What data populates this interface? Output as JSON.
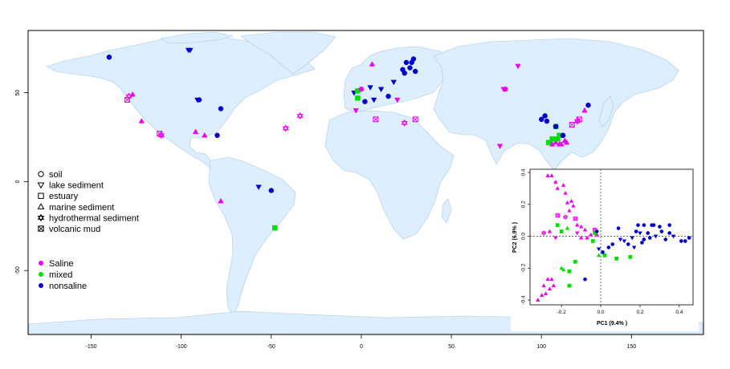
{
  "axes": {
    "x_ticks": [
      {
        "value": -150,
        "label": "-150"
      },
      {
        "value": -100,
        "label": "-100"
      },
      {
        "value": -50,
        "label": "-50"
      },
      {
        "value": 0,
        "label": "0"
      },
      {
        "value": 50,
        "label": "50"
      },
      {
        "value": 100,
        "label": "100"
      },
      {
        "value": 150,
        "label": "150"
      }
    ],
    "y_ticks": [
      {
        "value": 50,
        "label": "50"
      },
      {
        "value": 0,
        "label": "0"
      },
      {
        "value": -50,
        "label": "-50"
      }
    ],
    "xlim": [
      -185,
      190
    ],
    "ylim": [
      -86,
      85
    ]
  },
  "legend_habitat": [
    {
      "symbol": "circle",
      "label": "soil"
    },
    {
      "symbol": "triangle-down",
      "label": "lake sediment"
    },
    {
      "symbol": "square",
      "label": "estuary"
    },
    {
      "symbol": "triangle-up",
      "label": "marine sediment"
    },
    {
      "symbol": "star",
      "label": "hydrothermal sediment"
    },
    {
      "symbol": "square-x",
      "label": "volcanic mud"
    }
  ],
  "legend_salinity": [
    {
      "color": "#ee00ee",
      "label": "Saline"
    },
    {
      "color": "#00dd00",
      "label": "mixed"
    },
    {
      "color": "#0000cc",
      "label": "nonsaline"
    }
  ],
  "colors": {
    "Saline": "#ee00ee",
    "mixed": "#00dd00",
    "nonsaline": "#0000cc",
    "land": "#ddeeff",
    "land_border": "#a8c8ea"
  },
  "inset": {
    "xlabel": "PC1 (9.4% )",
    "ylabel": "PC2 (6.9% )",
    "x_ticks": [
      {
        "value": -0.2,
        "label": "-0.2"
      },
      {
        "value": 0.0,
        "label": "0.0"
      },
      {
        "value": 0.2,
        "label": "0.2"
      },
      {
        "value": 0.4,
        "label": "0.4"
      }
    ],
    "y_ticks": [
      {
        "value": 0.4,
        "label": "0.4"
      },
      {
        "value": 0.2,
        "label": "0.2"
      },
      {
        "value": 0.0,
        "label": "0.0"
      },
      {
        "value": -0.2,
        "label": "-0.2"
      },
      {
        "value": -0.4,
        "label": "-0.4"
      }
    ],
    "xlim": [
      -0.36,
      0.47
    ],
    "ylim": [
      -0.43,
      0.42
    ]
  },
  "chart_data": {
    "type": "scatter",
    "map_points": [
      {
        "lon": -140,
        "lat": 70,
        "shape": "circle",
        "group": "nonsaline"
      },
      {
        "lon": -96,
        "lat": 74,
        "shape": "triangle-down",
        "group": "nonsaline"
      },
      {
        "lon": -95,
        "lat": 74,
        "shape": "triangle-down",
        "group": "nonsaline"
      },
      {
        "lon": -91,
        "lat": 46,
        "shape": "triangle-down",
        "group": "nonsaline"
      },
      {
        "lon": -90,
        "lat": 46,
        "shape": "circle",
        "group": "nonsaline"
      },
      {
        "lon": -78,
        "lat": 41,
        "shape": "circle",
        "group": "nonsaline"
      },
      {
        "lon": -130,
        "lat": 46,
        "shape": "square-x",
        "group": "Saline"
      },
      {
        "lon": -129,
        "lat": 48,
        "shape": "star",
        "group": "Saline"
      },
      {
        "lon": -127,
        "lat": 49,
        "shape": "triangle-up",
        "group": "Saline"
      },
      {
        "lon": -122,
        "lat": 34,
        "shape": "triangle-up",
        "group": "Saline"
      },
      {
        "lon": -112,
        "lat": 27,
        "shape": "square-x",
        "group": "Saline"
      },
      {
        "lon": -111,
        "lat": 26,
        "shape": "star",
        "group": "Saline"
      },
      {
        "lon": -92,
        "lat": 28,
        "shape": "triangle-up",
        "group": "Saline"
      },
      {
        "lon": -87,
        "lat": 26,
        "shape": "triangle-up",
        "group": "Saline"
      },
      {
        "lon": -80,
        "lat": 26,
        "shape": "circle",
        "group": "nonsaline"
      },
      {
        "lon": -78,
        "lat": -11,
        "shape": "triangle-up",
        "group": "Saline"
      },
      {
        "lon": -57,
        "lat": -3,
        "shape": "triangle-down",
        "group": "nonsaline"
      },
      {
        "lon": -50,
        "lat": -5,
        "shape": "circle",
        "group": "nonsaline"
      },
      {
        "lon": -48,
        "lat": -26,
        "shape": "square",
        "group": "mixed"
      },
      {
        "lon": -42,
        "lat": 30,
        "shape": "star",
        "group": "Saline"
      },
      {
        "lon": -34,
        "lat": 37,
        "shape": "star",
        "group": "Saline"
      },
      {
        "lon": -4,
        "lat": 50,
        "shape": "triangle-down",
        "group": "nonsaline"
      },
      {
        "lon": -2,
        "lat": 51,
        "shape": "square",
        "group": "mixed"
      },
      {
        "lon": -2,
        "lat": 47,
        "shape": "square",
        "group": "mixed"
      },
      {
        "lon": -3,
        "lat": 40,
        "shape": "triangle-down",
        "group": "Saline"
      },
      {
        "lon": 0,
        "lat": 52,
        "shape": "circle",
        "group": "Saline"
      },
      {
        "lon": 2,
        "lat": 45,
        "shape": "circle",
        "group": "nonsaline"
      },
      {
        "lon": 5,
        "lat": 53,
        "shape": "triangle-down",
        "group": "nonsaline"
      },
      {
        "lon": 6,
        "lat": 66,
        "shape": "triangle-up",
        "group": "Saline"
      },
      {
        "lon": 7,
        "lat": 46,
        "shape": "triangle-down",
        "group": "nonsaline"
      },
      {
        "lon": 8,
        "lat": 35,
        "shape": "square-x",
        "group": "Saline"
      },
      {
        "lon": 11,
        "lat": 52,
        "shape": "triangle-down",
        "group": "nonsaline"
      },
      {
        "lon": 15,
        "lat": 48,
        "shape": "circle",
        "group": "nonsaline"
      },
      {
        "lon": 20,
        "lat": 46,
        "shape": "triangle-down",
        "group": "Saline"
      },
      {
        "lon": 24,
        "lat": 33,
        "shape": "star",
        "group": "Saline"
      },
      {
        "lon": 30,
        "lat": 35,
        "shape": "square-x",
        "group": "Saline"
      },
      {
        "lon": 23,
        "lat": 63,
        "shape": "circle",
        "group": "nonsaline"
      },
      {
        "lon": 24,
        "lat": 61,
        "shape": "circle",
        "group": "nonsaline"
      },
      {
        "lon": 25,
        "lat": 67,
        "shape": "circle",
        "group": "nonsaline"
      },
      {
        "lon": 27,
        "lat": 64,
        "shape": "circle",
        "group": "nonsaline"
      },
      {
        "lon": 28,
        "lat": 67,
        "shape": "circle",
        "group": "nonsaline"
      },
      {
        "lon": 29,
        "lat": 69,
        "shape": "circle",
        "group": "nonsaline"
      },
      {
        "lon": 30,
        "lat": 62,
        "shape": "circle",
        "group": "nonsaline"
      },
      {
        "lon": 18,
        "lat": 56,
        "shape": "triangle-down",
        "group": "nonsaline"
      },
      {
        "lon": 79,
        "lat": 52,
        "shape": "triangle-down",
        "group": "Saline"
      },
      {
        "lon": 80,
        "lat": 52,
        "shape": "circle",
        "group": "Saline"
      },
      {
        "lon": 77,
        "lat": 20,
        "shape": "triangle-down",
        "group": "Saline"
      },
      {
        "lon": 87,
        "lat": 65,
        "shape": "triangle-down",
        "group": "Saline"
      },
      {
        "lon": 100,
        "lat": 35,
        "shape": "circle",
        "group": "nonsaline"
      },
      {
        "lon": 102,
        "lat": 37,
        "shape": "circle",
        "group": "nonsaline"
      },
      {
        "lon": 103,
        "lat": 34,
        "shape": "circle",
        "group": "nonsaline"
      },
      {
        "lon": 108,
        "lat": 31,
        "shape": "square",
        "group": "mixed"
      },
      {
        "lon": 108,
        "lat": 31,
        "shape": "circle",
        "group": "nonsaline"
      },
      {
        "lon": 105,
        "lat": 22,
        "shape": "triangle-up",
        "group": "Saline"
      },
      {
        "lon": 106,
        "lat": 21,
        "shape": "triangle-up",
        "group": "Saline"
      },
      {
        "lon": 108,
        "lat": 22,
        "shape": "triangle-up",
        "group": "Saline"
      },
      {
        "lon": 110,
        "lat": 21,
        "shape": "triangle-up",
        "group": "Saline"
      },
      {
        "lon": 111,
        "lat": 21,
        "shape": "triangle-up",
        "group": "Saline"
      },
      {
        "lon": 113,
        "lat": 23,
        "shape": "triangle-up",
        "group": "Saline"
      },
      {
        "lon": 104,
        "lat": 22,
        "shape": "square",
        "group": "mixed"
      },
      {
        "lon": 106,
        "lat": 24,
        "shape": "square",
        "group": "mixed"
      },
      {
        "lon": 109,
        "lat": 24,
        "shape": "square",
        "group": "mixed"
      },
      {
        "lon": 110,
        "lat": 26,
        "shape": "square",
        "group": "mixed"
      },
      {
        "lon": 112,
        "lat": 26,
        "shape": "circle",
        "group": "nonsaline"
      },
      {
        "lon": 114,
        "lat": 22,
        "shape": "triangle-up",
        "group": "Saline"
      },
      {
        "lon": 117,
        "lat": 32,
        "shape": "square-x",
        "group": "Saline"
      },
      {
        "lon": 120,
        "lat": 34,
        "shape": "star",
        "group": "Saline"
      },
      {
        "lon": 121,
        "lat": 35,
        "shape": "square-x",
        "group": "Saline"
      },
      {
        "lon": 124,
        "lat": 40,
        "shape": "triangle-up",
        "group": "Saline"
      },
      {
        "lon": 126,
        "lat": 43,
        "shape": "circle",
        "group": "nonsaline"
      }
    ],
    "pca_points": [
      {
        "x": -0.27,
        "y": 0.38,
        "shape": "triangle-up",
        "group": "Saline"
      },
      {
        "x": -0.25,
        "y": 0.38,
        "shape": "triangle-up",
        "group": "Saline"
      },
      {
        "x": -0.23,
        "y": 0.34,
        "shape": "triangle-up",
        "group": "Saline"
      },
      {
        "x": -0.22,
        "y": 0.3,
        "shape": "triangle-up",
        "group": "Saline"
      },
      {
        "x": -0.19,
        "y": 0.32,
        "shape": "triangle-up",
        "group": "Saline"
      },
      {
        "x": -0.18,
        "y": 0.27,
        "shape": "triangle-up",
        "group": "Saline"
      },
      {
        "x": -0.17,
        "y": 0.21,
        "shape": "triangle-up",
        "group": "Saline"
      },
      {
        "x": -0.15,
        "y": 0.22,
        "shape": "triangle-up",
        "group": "Saline"
      },
      {
        "x": -0.14,
        "y": 0.19,
        "shape": "triangle-up",
        "group": "Saline"
      },
      {
        "x": -0.16,
        "y": 0.16,
        "shape": "triangle-up",
        "group": "Saline"
      },
      {
        "x": -0.22,
        "y": 0.13,
        "shape": "square-x",
        "group": "Saline"
      },
      {
        "x": -0.18,
        "y": 0.12,
        "shape": "star",
        "group": "Saline"
      },
      {
        "x": -0.13,
        "y": 0.11,
        "shape": "square-x",
        "group": "Saline"
      },
      {
        "x": -0.12,
        "y": 0.07,
        "shape": "triangle-up",
        "group": "Saline"
      },
      {
        "x": -0.1,
        "y": 0.06,
        "shape": "triangle-up",
        "group": "Saline"
      },
      {
        "x": -0.08,
        "y": 0.04,
        "shape": "triangle-up",
        "group": "Saline"
      },
      {
        "x": -0.12,
        "y": 0.02,
        "shape": "triangle-down",
        "group": "Saline"
      },
      {
        "x": -0.1,
        "y": -0.01,
        "shape": "triangle-up",
        "group": "Saline"
      },
      {
        "x": -0.07,
        "y": -0.01,
        "shape": "triangle-up",
        "group": "Saline"
      },
      {
        "x": -0.05,
        "y": 0.01,
        "shape": "triangle-up",
        "group": "Saline"
      },
      {
        "x": -0.26,
        "y": 0.03,
        "shape": "triangle-up",
        "group": "Saline"
      },
      {
        "x": -0.29,
        "y": 0.02,
        "shape": "star",
        "group": "Saline"
      },
      {
        "x": -0.23,
        "y": -0.01,
        "shape": "triangle-down",
        "group": "Saline"
      },
      {
        "x": -0.03,
        "y": 0.04,
        "shape": "square-x",
        "group": "Saline"
      },
      {
        "x": -0.02,
        "y": 0.01,
        "shape": "triangle-up",
        "group": "Saline"
      },
      {
        "x": -0.27,
        "y": -0.27,
        "shape": "triangle-up",
        "group": "Saline"
      },
      {
        "x": -0.25,
        "y": -0.27,
        "shape": "triangle-up",
        "group": "Saline"
      },
      {
        "x": -0.29,
        "y": -0.31,
        "shape": "triangle-up",
        "group": "Saline"
      },
      {
        "x": -0.26,
        "y": -0.33,
        "shape": "triangle-up",
        "group": "Saline"
      },
      {
        "x": -0.28,
        "y": -0.36,
        "shape": "triangle-up",
        "group": "Saline"
      },
      {
        "x": -0.32,
        "y": -0.4,
        "shape": "triangle-up",
        "group": "Saline"
      },
      {
        "x": -0.3,
        "y": -0.37,
        "shape": "triangle-up",
        "group": "Saline"
      },
      {
        "x": -0.24,
        "y": -0.31,
        "shape": "triangle-up",
        "group": "Saline"
      },
      {
        "x": -0.22,
        "y": 0.07,
        "shape": "square",
        "group": "mixed"
      },
      {
        "x": -0.17,
        "y": 0.05,
        "shape": "triangle-up",
        "group": "mixed"
      },
      {
        "x": -0.2,
        "y": 0.03,
        "shape": "square",
        "group": "mixed"
      },
      {
        "x": -0.04,
        "y": -0.03,
        "shape": "square",
        "group": "mixed"
      },
      {
        "x": -0.01,
        "y": -0.12,
        "shape": "triangle-up",
        "group": "mixed"
      },
      {
        "x": 0.02,
        "y": -0.12,
        "shape": "square",
        "group": "mixed"
      },
      {
        "x": 0.08,
        "y": -0.14,
        "shape": "square",
        "group": "mixed"
      },
      {
        "x": 0.15,
        "y": -0.13,
        "shape": "square",
        "group": "mixed"
      },
      {
        "x": -0.2,
        "y": -0.2,
        "shape": "triangle-up",
        "group": "mixed"
      },
      {
        "x": -0.19,
        "y": -0.21,
        "shape": "triangle-up",
        "group": "mixed"
      },
      {
        "x": -0.16,
        "y": -0.22,
        "shape": "square",
        "group": "mixed"
      },
      {
        "x": -0.16,
        "y": -0.31,
        "shape": "square",
        "group": "mixed"
      },
      {
        "x": -0.13,
        "y": -0.16,
        "shape": "square",
        "group": "mixed"
      },
      {
        "x": -0.03,
        "y": 0.02,
        "shape": "square",
        "group": "mixed"
      },
      {
        "x": -0.02,
        "y": 0.03,
        "shape": "circle",
        "group": "nonsaline"
      },
      {
        "x": -0.01,
        "y": -0.08,
        "shape": "triangle-down",
        "group": "nonsaline"
      },
      {
        "x": -0.08,
        "y": -0.27,
        "shape": "circle",
        "group": "nonsaline"
      },
      {
        "x": 0.01,
        "y": -0.1,
        "shape": "circle",
        "group": "nonsaline"
      },
      {
        "x": 0.04,
        "y": -0.07,
        "shape": "circle",
        "group": "nonsaline"
      },
      {
        "x": 0.06,
        "y": -0.05,
        "shape": "circle",
        "group": "nonsaline"
      },
      {
        "x": 0.1,
        "y": -0.02,
        "shape": "triangle-down",
        "group": "nonsaline"
      },
      {
        "x": 0.12,
        "y": -0.03,
        "shape": "triangle-down",
        "group": "nonsaline"
      },
      {
        "x": 0.14,
        "y": -0.05,
        "shape": "circle",
        "group": "nonsaline"
      },
      {
        "x": 0.16,
        "y": -0.01,
        "shape": "triangle-down",
        "group": "nonsaline"
      },
      {
        "x": 0.17,
        "y": -0.07,
        "shape": "triangle-down",
        "group": "nonsaline"
      },
      {
        "x": 0.18,
        "y": 0.03,
        "shape": "circle",
        "group": "nonsaline"
      },
      {
        "x": 0.2,
        "y": 0.02,
        "shape": "triangle-down",
        "group": "nonsaline"
      },
      {
        "x": 0.21,
        "y": -0.04,
        "shape": "circle",
        "group": "nonsaline"
      },
      {
        "x": 0.22,
        "y": -0.02,
        "shape": "circle",
        "group": "nonsaline"
      },
      {
        "x": 0.24,
        "y": 0.02,
        "shape": "circle",
        "group": "nonsaline"
      },
      {
        "x": 0.25,
        "y": -0.01,
        "shape": "circle",
        "group": "nonsaline"
      },
      {
        "x": 0.26,
        "y": 0.07,
        "shape": "circle",
        "group": "nonsaline"
      },
      {
        "x": 0.28,
        "y": 0.0,
        "shape": "triangle-down",
        "group": "nonsaline"
      },
      {
        "x": 0.3,
        "y": 0.06,
        "shape": "circle",
        "group": "nonsaline"
      },
      {
        "x": 0.31,
        "y": 0.03,
        "shape": "circle",
        "group": "nonsaline"
      },
      {
        "x": 0.33,
        "y": -0.02,
        "shape": "circle",
        "group": "nonsaline"
      },
      {
        "x": 0.35,
        "y": 0.07,
        "shape": "circle",
        "group": "nonsaline"
      },
      {
        "x": 0.35,
        "y": 0.02,
        "shape": "circle",
        "group": "nonsaline"
      },
      {
        "x": 0.37,
        "y": 0.0,
        "shape": "triangle-down",
        "group": "nonsaline"
      },
      {
        "x": 0.41,
        "y": -0.03,
        "shape": "circle",
        "group": "nonsaline"
      },
      {
        "x": 0.43,
        "y": -0.03,
        "shape": "circle",
        "group": "nonsaline"
      },
      {
        "x": 0.45,
        "y": -0.01,
        "shape": "circle",
        "group": "nonsaline"
      },
      {
        "x": 0.22,
        "y": 0.07,
        "shape": "circle",
        "group": "nonsaline"
      },
      {
        "x": 0.27,
        "y": 0.07,
        "shape": "circle",
        "group": "nonsaline"
      },
      {
        "x": 0.09,
        "y": 0.05,
        "shape": "circle",
        "group": "nonsaline"
      },
      {
        "x": 0.19,
        "y": 0.07,
        "shape": "circle",
        "group": "nonsaline"
      }
    ]
  }
}
